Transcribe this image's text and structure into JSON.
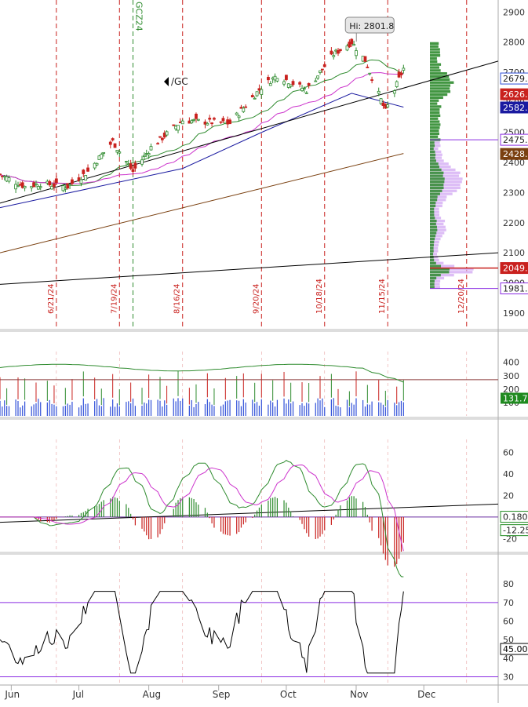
{
  "chart_data": {
    "type": "candlestick",
    "symbol_label": "/GC",
    "contract_label": "GCZ24",
    "hi_label": "Hi: 2801.8",
    "price_axis": {
      "range": [
        1850,
        2940
      ],
      "ticks": [
        "1900",
        "2000",
        "2100",
        "2200",
        "2300",
        "2400",
        "2500",
        "2600",
        "2700",
        "2800",
        "2900"
      ]
    },
    "x_axis": {
      "range": [
        "2024-05-27",
        "2025-01-03"
      ],
      "month_labels": [
        {
          "label": "Jun",
          "date": "2024-06-01"
        },
        {
          "label": "Jul",
          "date": "2024-07-01"
        },
        {
          "label": "Aug",
          "date": "2024-08-01"
        },
        {
          "label": "Sep",
          "date": "2024-09-01"
        },
        {
          "label": "Oct",
          "date": "2024-10-01"
        },
        {
          "label": "Nov",
          "date": "2024-11-01"
        },
        {
          "label": "Dec",
          "date": "2024-12-01"
        }
      ]
    },
    "expiry_markers": [
      {
        "label": "6/21/24",
        "date": "2024-06-21"
      },
      {
        "label": "7/19/24",
        "date": "2024-07-19"
      },
      {
        "label": "8/16/24",
        "date": "2024-08-16"
      },
      {
        "label": "9/20/24",
        "date": "2024-09-20"
      },
      {
        "label": "10/18/24",
        "date": "2024-10-18"
      },
      {
        "label": "11/15/24",
        "date": "2024-11-15"
      },
      {
        "label": "12/20/24",
        "date": "2024-12-20"
      }
    ],
    "roll_marker": {
      "label": "GCZ24",
      "date": "2024-07-25"
    },
    "price_tags": [
      {
        "value": "2679.1",
        "color": "#2f4fd8",
        "filled": false
      },
      {
        "value": "2626.7",
        "color": "#c9211e",
        "filled": true
      },
      {
        "value": "2582.8",
        "color": "#1a1aa0",
        "filled": true
      },
      {
        "value": "2475.6",
        "color": "#8a2be2",
        "filled": false
      },
      {
        "value": "2428.4",
        "color": "#7a4010",
        "filled": true
      },
      {
        "value": "2049.3",
        "color": "#c9211e",
        "filled": true
      },
      {
        "value": "1981.5",
        "color": "#8a2be2",
        "filled": false
      }
    ],
    "volume_axis": {
      "range": [
        0,
        480
      ],
      "ticks": [
        "100",
        "200",
        "300",
        "400"
      ],
      "last_value": "131.76"
    },
    "macd_axis": {
      "range": [
        -30,
        72
      ],
      "ticks": [
        "-20",
        "20",
        "40",
        "60"
      ],
      "values": [
        "0.1801",
        "-12.25"
      ]
    },
    "rsi_axis": {
      "range": [
        26,
        86
      ],
      "ticks": [
        "30",
        "40",
        "50",
        "60",
        "70",
        "80"
      ],
      "last_value": "45.007",
      "overbought": 70,
      "oversold": 30
    },
    "colors": {
      "up": "#2e8b2e",
      "down": "#c9211e",
      "sma_fast": "#2e8b2e",
      "sma_mid": "#cc33cc",
      "sma_slow": "#1a1aa0",
      "sma_long": "#7a4010",
      "trend": "#000000",
      "expiry": "#c9211e",
      "roll": "#2e8b2e",
      "profile": "#2e8b2e",
      "profile_va": "#d9b6f5",
      "volume_bar": "#2f4fd8"
    }
  }
}
